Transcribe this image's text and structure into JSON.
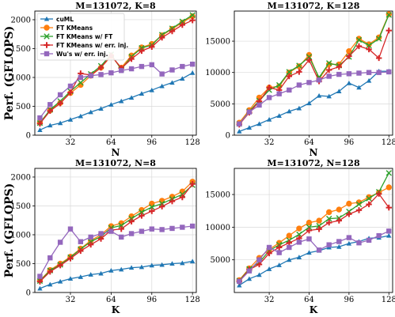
{
  "figure": {
    "ylabel": "Perf. (GFLOPS)",
    "colors": {
      "cuML": "#1f77b4",
      "FT KMeans": "#ff7f0e",
      "FT KMeans w/ FT": "#2ca02c",
      "FT KMeans w/ err. inj.": "#d62728",
      "Wu's w/ err. inj.": "#9467bd"
    }
  },
  "chart_data": [
    {
      "type": "line",
      "title": "M=131072, K=8",
      "xlabel": "N",
      "ylabel": "Perf. (GFLOPS)",
      "xlim": [
        4,
        131
      ],
      "ylim": [
        0,
        2150
      ],
      "xticks": [
        32,
        64,
        96,
        128
      ],
      "yticks": [
        0,
        500,
        1000,
        1500,
        2000
      ],
      "grid": true,
      "legend": "upper-left",
      "x": [
        8,
        16,
        24,
        32,
        40,
        48,
        56,
        64,
        72,
        80,
        88,
        96,
        104,
        112,
        120,
        128
      ],
      "series": [
        {
          "name": "cuML",
          "marker": "triangle",
          "values": [
            90,
            170,
            210,
            270,
            330,
            400,
            460,
            530,
            590,
            650,
            720,
            780,
            850,
            910,
            980,
            1080
          ]
        },
        {
          "name": "FT KMeans",
          "marker": "circle",
          "values": [
            220,
            430,
            560,
            730,
            870,
            1030,
            1170,
            1370,
            1170,
            1380,
            1520,
            1580,
            1730,
            1840,
            1950,
            2060
          ]
        },
        {
          "name": "FT KMeans w/ FT",
          "marker": "x",
          "values": [
            210,
            440,
            590,
            760,
            910,
            1060,
            1200,
            1400,
            1140,
            1360,
            1510,
            1560,
            1740,
            1850,
            1970,
            2080
          ]
        },
        {
          "name": "FT KMeans w/ err. inj.",
          "marker": "plus",
          "values": [
            200,
            420,
            550,
            740,
            1070,
            1040,
            1170,
            1380,
            1160,
            1320,
            1460,
            1530,
            1690,
            1800,
            1910,
            1990
          ]
        },
        {
          "name": "Wu's w/ err. inj.",
          "marker": "square",
          "values": [
            300,
            530,
            700,
            850,
            1000,
            1030,
            1050,
            1080,
            1120,
            1150,
            1190,
            1220,
            1060,
            1130,
            1190,
            1230
          ]
        }
      ]
    },
    {
      "type": "line",
      "title": "M=131072, K=128",
      "xlabel": "N",
      "ylabel": "",
      "xlim": [
        4,
        131
      ],
      "ylim": [
        0,
        19800
      ],
      "xticks": [
        32,
        64,
        96,
        128
      ],
      "yticks": [
        0,
        5000,
        10000,
        15000
      ],
      "grid": true,
      "legend": "none",
      "x": [
        8,
        16,
        24,
        32,
        40,
        48,
        56,
        64,
        72,
        80,
        88,
        96,
        104,
        112,
        120,
        128
      ],
      "series": [
        {
          "name": "cuML",
          "marker": "triangle",
          "values": [
            600,
            1200,
            1800,
            2500,
            3100,
            3800,
            4300,
            5100,
            6300,
            6200,
            7000,
            8300,
            7600,
            8700,
            10200,
            10200
          ]
        },
        {
          "name": "FT KMeans",
          "marker": "circle",
          "values": [
            2000,
            4000,
            6000,
            7600,
            7800,
            10000,
            11000,
            12800,
            9000,
            11300,
            11300,
            13400,
            15400,
            14500,
            15600,
            19300
          ]
        },
        {
          "name": "FT KMeans w/ FT",
          "marker": "x",
          "values": [
            1800,
            3800,
            5500,
            7200,
            8000,
            10100,
            11100,
            12500,
            9200,
            11500,
            11100,
            12500,
            15200,
            14300,
            15400,
            19200
          ]
        },
        {
          "name": "FT KMeans w/ err. inj.",
          "marker": "plus",
          "values": [
            1700,
            3600,
            5400,
            7600,
            7200,
            9400,
            10100,
            12000,
            8600,
            10400,
            10900,
            12600,
            14200,
            13700,
            12300,
            16700
          ]
        },
        {
          "name": "Wu's w/ err. inj.",
          "marker": "square",
          "values": [
            1800,
            3700,
            4800,
            6000,
            6600,
            7200,
            8000,
            8400,
            8800,
            9400,
            9700,
            9800,
            9900,
            10000,
            10000,
            10100
          ]
        }
      ]
    },
    {
      "type": "line",
      "title": "M=131072, N=8",
      "xlabel": "K",
      "ylabel": "Perf. (GFLOPS)",
      "xlim": [
        4,
        131
      ],
      "ylim": [
        0,
        2150
      ],
      "xticks": [
        32,
        64,
        96,
        128
      ],
      "yticks": [
        0,
        500,
        1000,
        1500,
        2000
      ],
      "grid": true,
      "legend": "none",
      "x": [
        8,
        16,
        24,
        32,
        40,
        48,
        56,
        64,
        72,
        80,
        88,
        96,
        104,
        112,
        120,
        128
      ],
      "series": [
        {
          "name": "cuML",
          "marker": "triangle",
          "values": [
            70,
            140,
            190,
            240,
            270,
            310,
            330,
            380,
            400,
            430,
            440,
            470,
            480,
            500,
            510,
            540
          ]
        },
        {
          "name": "FT KMeans",
          "marker": "circle",
          "values": [
            210,
            390,
            500,
            620,
            760,
            900,
            1000,
            1150,
            1200,
            1320,
            1430,
            1540,
            1590,
            1660,
            1750,
            1920
          ]
        },
        {
          "name": "FT KMeans w/ FT",
          "marker": "x",
          "values": [
            200,
            380,
            480,
            610,
            750,
            880,
            970,
            1120,
            1160,
            1280,
            1390,
            1480,
            1540,
            1620,
            1700,
            1860
          ]
        },
        {
          "name": "FT KMeans w/ err. inj.",
          "marker": "plus",
          "values": [
            190,
            360,
            470,
            590,
            720,
            830,
            930,
            1080,
            1100,
            1230,
            1330,
            1410,
            1490,
            1580,
            1650,
            1880
          ]
        },
        {
          "name": "Wu's w/ err. inj.",
          "marker": "square",
          "values": [
            280,
            600,
            870,
            1100,
            880,
            960,
            1020,
            1060,
            960,
            1020,
            1060,
            1100,
            1090,
            1110,
            1130,
            1150
          ]
        }
      ]
    },
    {
      "type": "line",
      "title": "M=131072, N=128",
      "xlabel": "K",
      "ylabel": "",
      "xlim": [
        4,
        131
      ],
      "ylim": [
        0,
        19000
      ],
      "xticks": [
        32,
        64,
        96,
        128
      ],
      "yticks": [
        5000,
        10000,
        15000
      ],
      "grid": true,
      "legend": "none",
      "x": [
        8,
        16,
        24,
        32,
        40,
        48,
        56,
        64,
        72,
        80,
        88,
        96,
        104,
        112,
        120,
        128
      ],
      "series": [
        {
          "name": "cuML",
          "marker": "triangle",
          "values": [
            1100,
            2100,
            2700,
            3600,
            4200,
            5000,
            5400,
            6100,
            6400,
            6900,
            7000,
            7500,
            7800,
            8300,
            8400,
            8700
          ]
        },
        {
          "name": "FT KMeans",
          "marker": "circle",
          "values": [
            1900,
            3700,
            5300,
            6600,
            7600,
            8700,
            9800,
            10700,
            11000,
            12300,
            12700,
            13600,
            13800,
            14600,
            15300,
            16100
          ]
        },
        {
          "name": "FT KMeans w/ FT",
          "marker": "x",
          "values": [
            1800,
            3600,
            4600,
            6400,
            7300,
            8000,
            8900,
            10000,
            10200,
            11300,
            11400,
            12400,
            13500,
            14400,
            15400,
            18300
          ]
        },
        {
          "name": "FT KMeans w/ err. inj.",
          "marker": "plus",
          "values": [
            1700,
            3500,
            4300,
            6000,
            6900,
            7600,
            8300,
            9500,
            9700,
            10700,
            11000,
            12000,
            12600,
            13500,
            15100,
            13000
          ]
        },
        {
          "name": "Wu's w/ err. inj.",
          "marker": "square",
          "values": [
            1700,
            3300,
            5000,
            6900,
            6100,
            6900,
            7700,
            8200,
            6500,
            7300,
            7800,
            8400,
            7600,
            8000,
            8700,
            9400
          ]
        }
      ]
    }
  ]
}
